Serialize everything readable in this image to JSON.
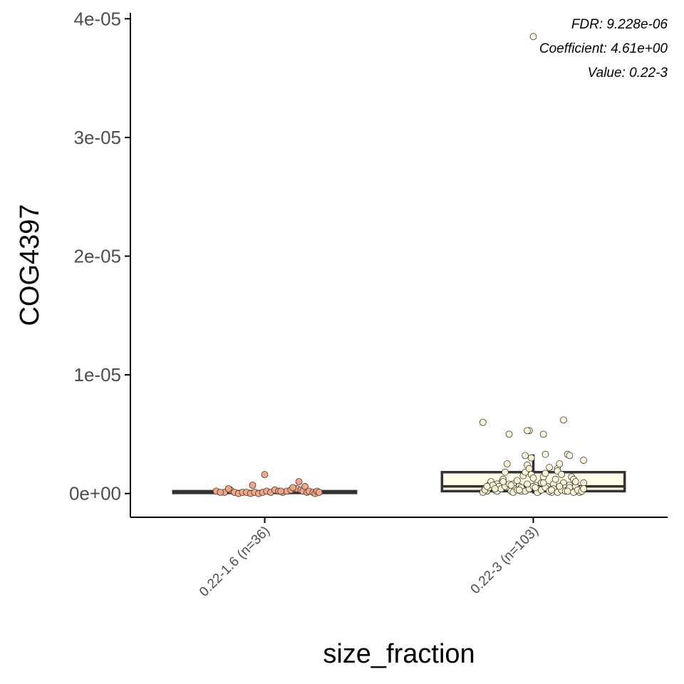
{
  "chart_data": {
    "type": "box",
    "title": "",
    "xlabel": "size_fraction",
    "ylabel": "COG4397",
    "ylim": [
      -2e-06,
      4.05e-05
    ],
    "yticks": [
      {
        "value": 0,
        "label": "0e+00"
      },
      {
        "value": 1e-05,
        "label": "1e-05"
      },
      {
        "value": 2e-05,
        "label": "2e-05"
      },
      {
        "value": 3e-05,
        "label": "3e-05"
      },
      {
        "value": 4e-05,
        "label": "4e-05"
      }
    ],
    "categories": [
      "0.22-1.6 (n=36)",
      "0.22-3 (n=103)"
    ],
    "annotations": [
      "FDR: 9.228e-06",
      "Coefficient: 4.61e+00",
      "Value: 0.22-3"
    ],
    "grid": false,
    "legend": "none",
    "colors": {
      "group1_fill": "#f4a582",
      "group2_fill": "#fff7d6",
      "box2_fill": "#fffde6",
      "box_line": "#333333",
      "point_stroke": "#3a3a3a"
    },
    "boxes": [
      {
        "category": "0.22-1.6 (n=36)",
        "min": 0,
        "q1": 5e-08,
        "median": 1e-07,
        "q3": 2e-07,
        "max": 3e-07
      },
      {
        "category": "0.22-3 (n=103)",
        "min": 0,
        "q1": 2e-07,
        "median": 6e-07,
        "q3": 1.8e-06,
        "max": 3.3e-06
      }
    ],
    "series": [
      {
        "category": "0.22-1.6 (n=36)",
        "jitter": [
          -0.24,
          -0.2,
          -0.17,
          -0.15,
          -0.13,
          -0.11,
          -0.09,
          -0.07,
          -0.05,
          -0.03,
          -0.01,
          0.01,
          0.03,
          0.05,
          0.07,
          0.09,
          0.11,
          0.13,
          0.15,
          0.16,
          0.17,
          0.18,
          0.19,
          0.2,
          0.21,
          0.22,
          0.24,
          0.25,
          0.26,
          0.27,
          -0.18,
          -0.22,
          0.08,
          0.0,
          -0.06,
          0.14
        ],
        "values": [
          2e-07,
          1e-07,
          3e-07,
          1e-07,
          0,
          1e-07,
          1e-07,
          0,
          1e-07,
          0,
          1e-07,
          2e-07,
          1e-07,
          3e-07,
          2e-07,
          1e-07,
          2e-07,
          3e-07,
          4e-07,
          4e-07,
          1e-06,
          3e-07,
          2e-07,
          6e-07,
          1e-07,
          2e-07,
          1e-07,
          0,
          2e-07,
          1e-07,
          4e-07,
          1e-07,
          2e-07,
          1.6e-06,
          7e-07,
          5e-07
        ]
      },
      {
        "category": "0.22-3 (n=103)",
        "jitter": [
          0.15,
          -0.25,
          -0.12,
          -0.02,
          -0.03,
          0.05,
          -0.13,
          0.25,
          0.06,
          -0.04,
          -0.01,
          0.08,
          0.12,
          0.17,
          0.18,
          -0.14,
          -0.16,
          -0.18,
          -0.2,
          -0.22,
          -0.24,
          -0.23,
          -0.21,
          -0.19,
          -0.17,
          -0.15,
          -0.11,
          -0.1,
          -0.09,
          -0.08,
          -0.07,
          -0.06,
          -0.05,
          -0.04,
          -0.03,
          -0.02,
          -0.01,
          0.0,
          0.01,
          0.02,
          0.03,
          0.04,
          0.05,
          0.06,
          0.07,
          0.08,
          0.09,
          0.1,
          0.11,
          0.12,
          0.13,
          0.14,
          0.15,
          0.16,
          0.17,
          0.18,
          0.19,
          0.2,
          0.21,
          0.22,
          0.23,
          0.24,
          0.25,
          -0.25,
          -0.24,
          -0.22,
          -0.2,
          -0.18,
          -0.16,
          -0.14,
          -0.12,
          -0.1,
          -0.08,
          -0.06,
          -0.04,
          -0.02,
          0.0,
          0.02,
          0.04,
          0.06,
          0.08,
          0.1,
          0.12,
          0.14,
          0.16,
          0.18,
          0.2,
          0.22,
          0.24,
          -0.23,
          -0.19,
          -0.15,
          -0.11,
          -0.07,
          -0.03,
          0.01,
          0.05,
          0.09,
          0.13,
          0.17,
          0.21,
          0.25,
          0.0
        ],
        "values": [
          6.2e-06,
          6e-06,
          5e-06,
          5.3e-06,
          5.3e-06,
          5e-06,
          2.5e-06,
          2.8e-06,
          3.3e-06,
          3.2e-06,
          3e-06,
          2.2e-06,
          2.1e-06,
          3.3e-06,
          3.2e-06,
          1.8e-06,
          9e-07,
          8e-07,
          5e-07,
          7e-07,
          4e-07,
          2e-07,
          1e-06,
          3e-07,
          6e-07,
          1.2e-06,
          2e-07,
          8e-07,
          4e-07,
          1.1e-06,
          6e-07,
          2e-07,
          1.5e-06,
          1.8e-06,
          2.4e-06,
          2.1e-06,
          1.6e-06,
          1.3e-06,
          7e-07,
          4e-07,
          2e-07,
          9e-07,
          1.4e-06,
          1.7e-06,
          6e-07,
          3e-07,
          1e-07,
          8e-07,
          1.2e-06,
          1.9e-06,
          2.5e-06,
          1.6e-06,
          9e-07,
          5e-07,
          3e-07,
          7e-07,
          1.4e-06,
          1.2e-06,
          6e-07,
          2e-07,
          1e-07,
          4e-07,
          9e-07,
          1e-07,
          3e-07,
          5e-07,
          7e-07,
          2e-07,
          4e-07,
          6e-07,
          8e-07,
          1e-07,
          3e-07,
          5e-07,
          2e-07,
          4e-07,
          6e-07,
          1e-07,
          3e-07,
          5e-07,
          2e-07,
          4e-07,
          1e-07,
          3e-07,
          2e-07,
          5e-07,
          1e-07,
          3e-07,
          2e-07,
          6e-07,
          4e-07,
          1e-06,
          7e-07,
          3e-07,
          8e-07,
          5e-07,
          9e-07,
          3e-07,
          6e-07,
          2e-07,
          1e-06,
          4e-07,
          3.85e-05
        ]
      }
    ]
  }
}
